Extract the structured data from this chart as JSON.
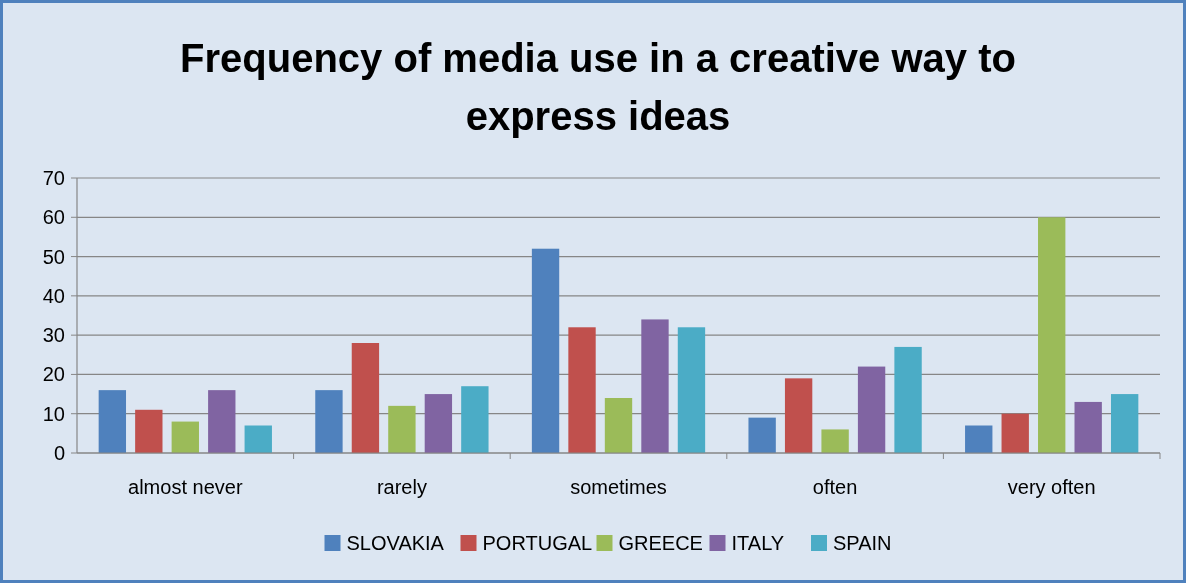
{
  "chart_data": {
    "type": "bar",
    "title": "Frequency of media use in a creative way to express ideas",
    "categories": [
      "almost never",
      "rarely",
      "sometimes",
      "often",
      "very often"
    ],
    "series": [
      {
        "name": "SLOVAKIA",
        "color": "#4f81bd",
        "values": [
          16,
          16,
          52,
          9,
          7
        ]
      },
      {
        "name": "PORTUGAL",
        "color": "#c0504d",
        "values": [
          11,
          28,
          32,
          19,
          10
        ]
      },
      {
        "name": "GREECE",
        "color": "#9bbb59",
        "values": [
          8,
          12,
          14,
          6,
          60
        ]
      },
      {
        "name": "ITALY",
        "color": "#8064a2",
        "values": [
          16,
          15,
          34,
          22,
          13
        ]
      },
      {
        "name": "SPAIN",
        "color": "#4bacc6",
        "values": [
          7,
          17,
          32,
          27,
          15
        ]
      }
    ],
    "ylim": [
      0,
      70
    ],
    "yticks": [
      0,
      10,
      20,
      30,
      40,
      50,
      60,
      70
    ],
    "grid": "y",
    "legend": "bottom"
  }
}
